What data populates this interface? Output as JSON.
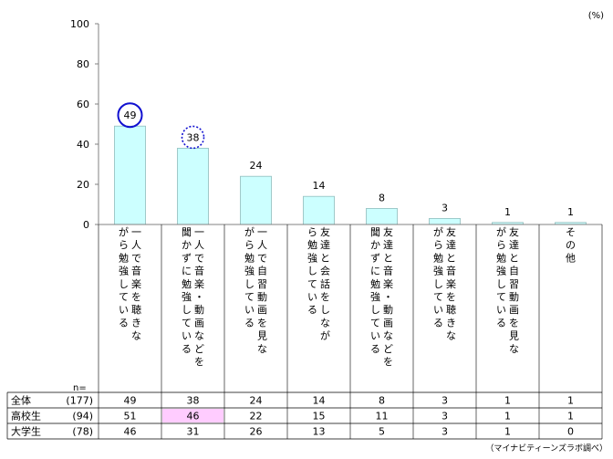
{
  "chart_data": {
    "type": "bar",
    "unit": "(%)",
    "ylim": [
      0,
      100
    ],
    "yticks": [
      0,
      20,
      40,
      60,
      80,
      100
    ],
    "grid": false,
    "categories": [
      "一人で音楽を聴きながら勉強している",
      "一人で音楽・動画などを聞かずに勉強している",
      "一人で自習動画を見ながら勉強している",
      "友達と会話をしながら勉強している",
      "友達と音楽・動画などを聞かずに勉強している",
      "友達と音楽を聴きながら勉強している",
      "友達と自習動画を見ながら勉強している",
      "その他"
    ],
    "values": [
      49,
      38,
      24,
      14,
      8,
      3,
      1,
      1
    ],
    "data_labels": [
      "49",
      "38",
      "24",
      "14",
      "8",
      "3",
      "1",
      "1"
    ],
    "highlight_circles": [
      {
        "index": 0,
        "style": "solid"
      },
      {
        "index": 1,
        "style": "dotted"
      }
    ],
    "colors": {
      "bar_fill": "#ccffff",
      "bar_stroke": "#8fbcbc",
      "circle": "#1010d0",
      "table_highlight": "#ffccff"
    }
  },
  "table": {
    "n_label": "n=",
    "rows": [
      {
        "label": "全体",
        "n": "(177)",
        "values": [
          "49",
          "38",
          "24",
          "14",
          "8",
          "3",
          "1",
          "1"
        ]
      },
      {
        "label": "高校生",
        "n": "(94)",
        "values": [
          "51",
          "46",
          "22",
          "15",
          "11",
          "3",
          "1",
          "1"
        ]
      },
      {
        "label": "大学生",
        "n": "(78)",
        "values": [
          "46",
          "31",
          "26",
          "13",
          "5",
          "3",
          "1",
          "0"
        ]
      }
    ],
    "highlight_cell": {
      "row": 1,
      "col": 1
    }
  },
  "source": "（マイナビティーンズラボ調べ）"
}
